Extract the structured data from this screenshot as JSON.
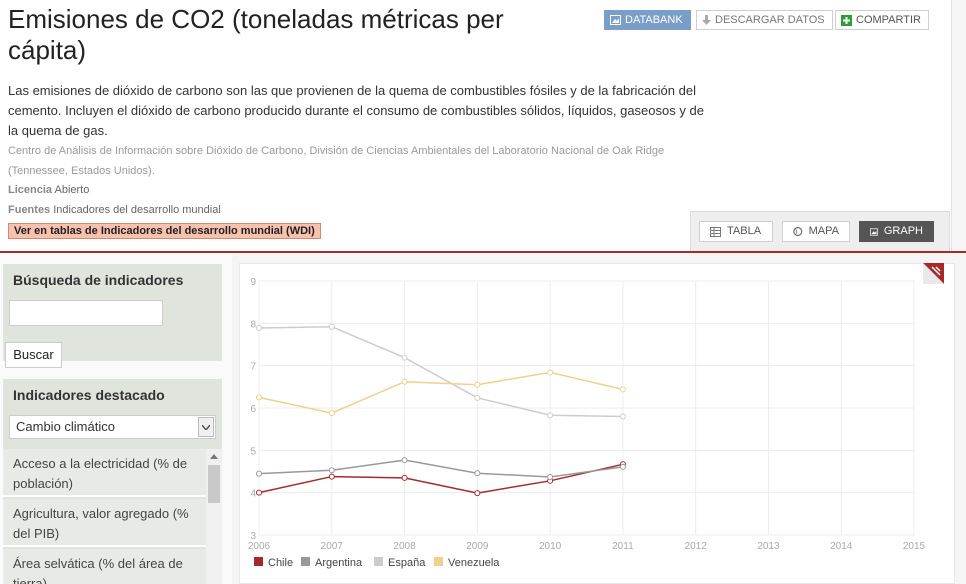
{
  "header": {
    "title": "Emisiones de CO2 (toneladas métricas per cápita)",
    "buttons": {
      "databank": "DATABANK",
      "descargar": "DESCARGAR DATOS",
      "compartir": "COMPARTIR"
    },
    "description": "Las emisiones de dióxido de carbono son las que provienen de la quema de combustibles fósiles y de la fabricación del cemento. Incluyen el dióxido de carbono producido durante el consumo de combustibles sólidos, líquidos, gaseosos y de la quema de gas.",
    "source": "Centro de Análisis de Información sobre Dióxido de Carbono, División de Ciencias Ambientales del Laboratorio Nacional de Oak Ridge (Tennessee, Estados Unidos).",
    "licencia_label": "Licencia",
    "licencia_value": "Abierto",
    "fuentes_label": "Fuentes",
    "fuentes_value": "Indicadores del desarrollo mundial",
    "wdi_link": "Ver en tablas de Indicadores del desarrollo mundial (WDI)"
  },
  "view_tabs": {
    "tabla": "TABLA",
    "mapa": "MAPA",
    "graph": "GRAPH",
    "active": "graph"
  },
  "sidebar": {
    "search_title": "Búsqueda de indicadores",
    "search_value": "",
    "search_button": "Buscar",
    "featured_title": "Indicadores destacado",
    "selected_category": "Cambio climático",
    "indicators": [
      "Acceso a la electricidad (% de población)",
      "Agricultura, valor agregado (% del PIB)",
      "Área selvática (% del área de tierra)"
    ]
  },
  "colors": {
    "Chile": "#a52a2a",
    "Argentina": "#999999",
    "España": "#cccccc",
    "Venezuela": "#f0d08c",
    "accent_red": "#a52a2a",
    "databank_blue": "#7b9ec9"
  },
  "chart_data": {
    "type": "line",
    "x": [
      2006,
      2007,
      2008,
      2009,
      2010,
      2011
    ],
    "xlim": [
      2006,
      2015
    ],
    "x_ticks": [
      "2006",
      "2007",
      "2008",
      "2009",
      "2010",
      "2011",
      "2012",
      "2013",
      "2014",
      "2015"
    ],
    "ylim": [
      3,
      9
    ],
    "y_ticks": [
      "3",
      "4",
      "5",
      "6",
      "7",
      "8",
      "9"
    ],
    "grid": true,
    "legend_position": "bottom-left",
    "series": [
      {
        "name": "Chile",
        "values": [
          4.0,
          4.38,
          4.35,
          3.99,
          4.28,
          4.67
        ]
      },
      {
        "name": "Argentina",
        "values": [
          4.45,
          4.53,
          4.77,
          4.46,
          4.37,
          4.61
        ]
      },
      {
        "name": "España",
        "values": [
          7.89,
          7.92,
          7.19,
          6.24,
          5.83,
          5.8
        ]
      },
      {
        "name": "Venezuela",
        "values": [
          6.25,
          5.88,
          6.62,
          6.55,
          6.84,
          6.44
        ]
      }
    ]
  }
}
